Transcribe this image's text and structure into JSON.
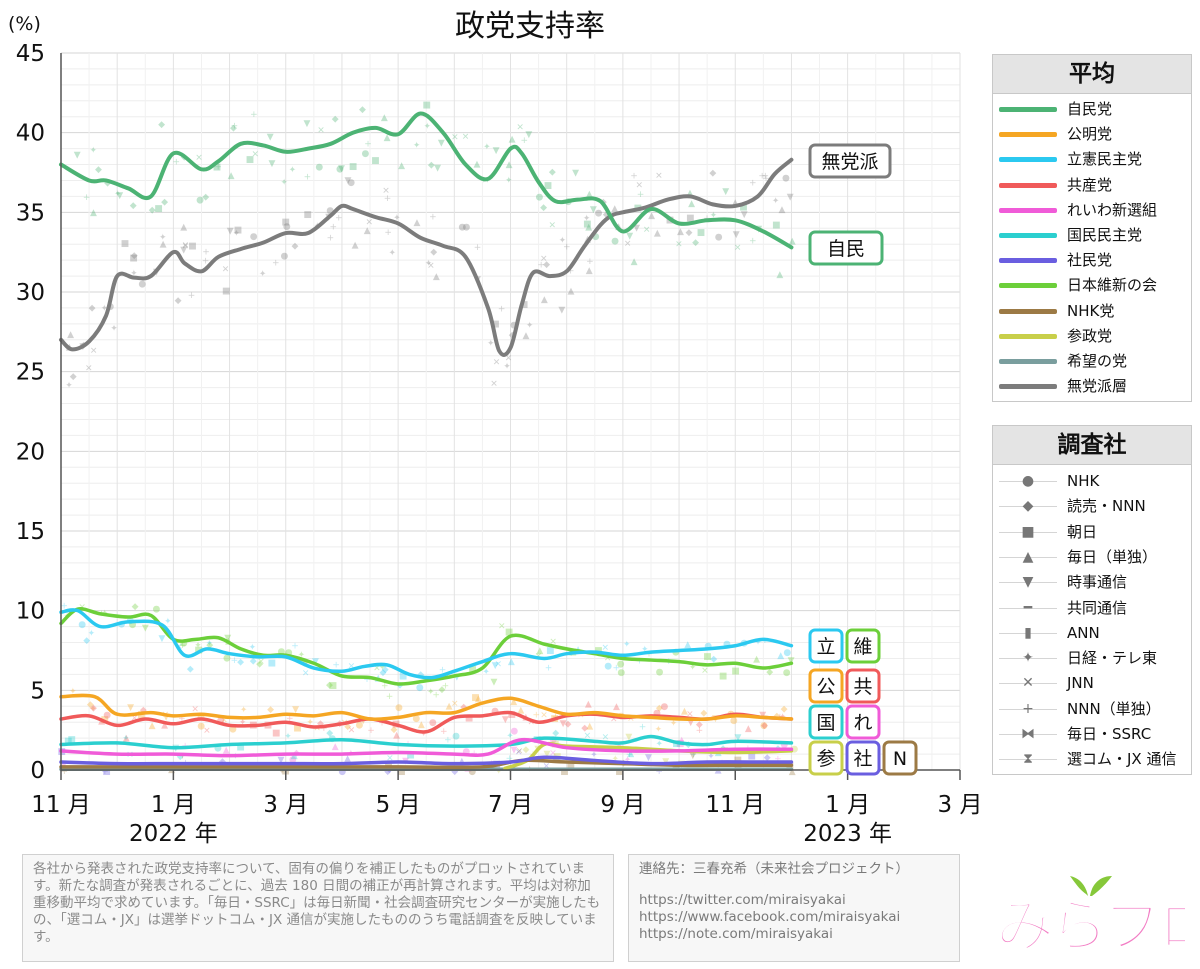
{
  "chart_data": {
    "type": "line",
    "title": "政党支持率",
    "ylabel": "(%)",
    "ylim": [
      0,
      45
    ],
    "yticks": [
      0,
      5,
      10,
      15,
      20,
      25,
      30,
      35,
      40,
      45
    ],
    "xlim": [
      0,
      16
    ],
    "x_ticks": [
      {
        "x": 0,
        "label": "11 月"
      },
      {
        "x": 2,
        "label": "1 月"
      },
      {
        "x": 4,
        "label": "3 月"
      },
      {
        "x": 6,
        "label": "5 月"
      },
      {
        "x": 8,
        "label": "7 月"
      },
      {
        "x": 10,
        "label": "9 月"
      },
      {
        "x": 12,
        "label": "11 月"
      },
      {
        "x": 14,
        "label": "1 月"
      },
      {
        "x": 16,
        "label": "3 月"
      }
    ],
    "year_labels": [
      {
        "x": 2,
        "label": "2022 年"
      },
      {
        "x": 14,
        "label": "2023 年"
      }
    ],
    "series": [
      {
        "name": "自民党",
        "color": "#4cb374",
        "x": [
          0,
          0.5,
          0.8,
          1.2,
          1.6,
          2.0,
          2.5,
          2.8,
          3.2,
          3.6,
          4.0,
          4.4,
          4.8,
          5.2,
          5.6,
          6.0,
          6.4,
          6.8,
          7.2,
          7.6,
          8.0,
          8.2,
          8.5,
          8.8,
          9.2,
          9.6,
          10.0,
          10.5,
          11.0,
          11.5,
          12.0,
          12.5,
          13.0
        ],
        "values": [
          38,
          37,
          37,
          36.5,
          36,
          38.7,
          37.7,
          38.2,
          39.3,
          39.2,
          38.8,
          39.0,
          39.3,
          40.0,
          40.3,
          39.9,
          41.2,
          40.0,
          38.0,
          37.1,
          39.0,
          38.7,
          36.9,
          35.7,
          35.8,
          35.7,
          33.8,
          35.2,
          34.3,
          34.5,
          34.5,
          33.8,
          32.8
        ]
      },
      {
        "name": "公明党",
        "color": "#f5a623",
        "x": [
          0,
          0.6,
          1.0,
          1.6,
          2.0,
          2.5,
          3.0,
          3.5,
          4.0,
          4.5,
          5.0,
          5.5,
          6.0,
          6.5,
          7.0,
          7.5,
          8.0,
          8.5,
          9.0,
          9.5,
          10.0,
          10.5,
          11.0,
          11.5,
          12.0,
          12.5,
          13.0
        ],
        "values": [
          4.6,
          4.6,
          3.5,
          3.6,
          3.4,
          3.5,
          3.3,
          3.3,
          3.5,
          3.4,
          3.6,
          3.2,
          3.3,
          3.6,
          3.6,
          4.2,
          4.5,
          4.0,
          3.5,
          3.6,
          3.4,
          3.3,
          3.2,
          3.2,
          3.4,
          3.3,
          3.2
        ]
      },
      {
        "name": "立憲民主党",
        "color": "#2bc9f0",
        "x": [
          0,
          0.3,
          0.7,
          1.2,
          1.8,
          2.2,
          2.6,
          3.0,
          3.5,
          4.0,
          4.5,
          5.0,
          5.4,
          5.8,
          6.2,
          6.6,
          7.0,
          7.5,
          8.0,
          8.6,
          9.0,
          9.5,
          10.0,
          10.5,
          11.0,
          11.5,
          12.0,
          12.5,
          13.0
        ],
        "values": [
          9.9,
          10.0,
          9.0,
          9.3,
          9.1,
          7.2,
          7.6,
          7.3,
          7.1,
          7.1,
          6.4,
          6.2,
          6.5,
          6.6,
          6.0,
          5.8,
          6.2,
          6.8,
          7.3,
          7.0,
          7.3,
          7.4,
          7.2,
          7.4,
          7.5,
          7.6,
          7.8,
          8.2,
          7.8
        ]
      },
      {
        "name": "共産党",
        "color": "#f05a5a",
        "x": [
          0,
          0.5,
          1.0,
          1.5,
          2.0,
          2.5,
          3.0,
          3.5,
          4.0,
          4.5,
          5.0,
          5.5,
          6.0,
          6.5,
          7.0,
          7.5,
          8.0,
          8.5,
          9.0,
          9.5,
          10.0,
          10.5,
          11.0,
          11.5,
          12.0,
          12.5,
          13.0
        ],
        "values": [
          3.2,
          3.4,
          2.8,
          3.2,
          2.9,
          3.2,
          2.8,
          2.8,
          3.0,
          2.7,
          2.9,
          3.2,
          2.8,
          2.4,
          3.3,
          3.4,
          3.6,
          3.0,
          3.4,
          3.5,
          3.3,
          3.4,
          3.3,
          3.2,
          3.5,
          3.3,
          3.2
        ]
      },
      {
        "name": "れいわ新選組",
        "color": "#f05bd8",
        "x": [
          0,
          1,
          2,
          3,
          4,
          5,
          6,
          7,
          7.6,
          8.2,
          9,
          10,
          11,
          12,
          13
        ],
        "values": [
          1.2,
          1.0,
          1.0,
          0.9,
          1.0,
          1.0,
          1.1,
          1.0,
          1.0,
          1.9,
          1.4,
          1.2,
          1.2,
          1.3,
          1.3
        ]
      },
      {
        "name": "国民民主党",
        "color": "#2bcfcf",
        "x": [
          0,
          1,
          2,
          3,
          4,
          5,
          6,
          7,
          8,
          8.6,
          9.5,
          10,
          10.5,
          11,
          11.5,
          12,
          13
        ],
        "values": [
          1.6,
          1.7,
          1.4,
          1.6,
          1.7,
          1.9,
          1.6,
          1.5,
          1.6,
          2.0,
          1.8,
          1.7,
          2.1,
          1.7,
          1.6,
          1.8,
          1.7
        ]
      },
      {
        "name": "社民党",
        "color": "#6a5ee0",
        "x": [
          0,
          1,
          2,
          3,
          4,
          5,
          6,
          7,
          8,
          8.6,
          9.5,
          10.5,
          11.5,
          12.5,
          13
        ],
        "values": [
          0.5,
          0.4,
          0.4,
          0.4,
          0.4,
          0.4,
          0.5,
          0.4,
          0.5,
          0.8,
          0.6,
          0.4,
          0.5,
          0.5,
          0.5
        ]
      },
      {
        "name": "日本維新の会",
        "color": "#6ccf3a",
        "x": [
          0,
          0.3,
          0.7,
          1.2,
          1.6,
          2.0,
          2.4,
          2.8,
          3.2,
          3.6,
          4.0,
          4.5,
          5.0,
          5.5,
          6.0,
          6.5,
          7.0,
          7.5,
          8.0,
          8.6,
          9.0,
          9.5,
          10.0,
          10.5,
          11.0,
          11.5,
          12.0,
          12.5,
          13.0
        ],
        "values": [
          9.2,
          10.1,
          9.8,
          9.6,
          9.7,
          8.2,
          8.2,
          8.3,
          7.6,
          7.2,
          7.2,
          6.7,
          5.9,
          5.8,
          5.4,
          5.6,
          5.9,
          6.4,
          8.4,
          7.9,
          7.6,
          7.3,
          7.0,
          6.9,
          6.8,
          6.6,
          6.7,
          6.4,
          6.7
        ]
      },
      {
        "name": "NHK党",
        "color": "#9c7a45",
        "x": [
          0,
          2,
          4,
          6,
          7.5,
          8.2,
          9,
          10,
          11,
          12,
          13
        ],
        "values": [
          0.2,
          0.2,
          0.2,
          0.2,
          0.2,
          0.6,
          0.5,
          0.4,
          0.3,
          0.3,
          0.3
        ]
      },
      {
        "name": "参政党",
        "color": "#c8cf4a",
        "x": [
          7.9,
          8.3,
          8.6,
          9.0,
          10.0,
          11.0,
          12.0,
          13.0
        ],
        "values": [
          0.1,
          0.6,
          1.6,
          1.5,
          1.4,
          1.2,
          1.1,
          1.2
        ]
      },
      {
        "name": "希望の党",
        "color": "#7a9e9e",
        "x": [
          0,
          3,
          6,
          9,
          13
        ],
        "values": [
          0.05,
          0.05,
          0.05,
          0.05,
          0.05
        ]
      },
      {
        "name": "無党派層",
        "color": "#7c7c7c",
        "x": [
          0,
          0.2,
          0.5,
          0.8,
          1.0,
          1.3,
          1.6,
          2.0,
          2.2,
          2.5,
          2.8,
          3.2,
          3.6,
          4.0,
          4.4,
          4.8,
          5.0,
          5.2,
          5.6,
          6.0,
          6.4,
          6.8,
          7.2,
          7.6,
          7.8,
          8.0,
          8.2,
          8.4,
          8.7,
          9.0,
          9.3,
          9.6,
          9.8,
          10.0,
          10.4,
          10.8,
          11.2,
          11.6,
          12.0,
          12.4,
          12.7,
          13.0
        ],
        "values": [
          27.0,
          26.4,
          26.9,
          28.5,
          31.0,
          30.9,
          31.0,
          32.5,
          31.8,
          31.3,
          32.2,
          32.7,
          33.1,
          33.7,
          33.7,
          34.8,
          35.4,
          35.2,
          34.7,
          34.3,
          33.4,
          32.9,
          32.2,
          29.0,
          26.3,
          26.5,
          29.2,
          31.2,
          31.0,
          31.3,
          32.8,
          34.2,
          34.8,
          35.0,
          35.3,
          35.8,
          36.0,
          35.5,
          35.4,
          36.0,
          37.4,
          38.3
        ]
      }
    ],
    "end_labels": [
      {
        "label": "無党派",
        "color": "#7c7c7c"
      },
      {
        "label": "自民",
        "color": "#4cb374"
      },
      {
        "label": "立",
        "color": "#2bc9f0"
      },
      {
        "label": "維",
        "color": "#6ccf3a"
      },
      {
        "label": "公",
        "color": "#f5a623"
      },
      {
        "label": "共",
        "color": "#f05a5a"
      },
      {
        "label": "国",
        "color": "#2bcfcf"
      },
      {
        "label": "れ",
        "color": "#f05bd8"
      },
      {
        "label": "参",
        "color": "#c8cf4a"
      },
      {
        "label": "社",
        "color": "#6a5ee0"
      },
      {
        "label": "N",
        "color": "#9c7a45"
      }
    ]
  },
  "legend_avg": {
    "title": "平均",
    "items": [
      {
        "label": "自民党",
        "color": "#4cb374"
      },
      {
        "label": "公明党",
        "color": "#f5a623"
      },
      {
        "label": "立憲民主党",
        "color": "#2bc9f0"
      },
      {
        "label": "共産党",
        "color": "#f05a5a"
      },
      {
        "label": "れいわ新選組",
        "color": "#f05bd8"
      },
      {
        "label": "国民民主党",
        "color": "#2bcfcf"
      },
      {
        "label": "社民党",
        "color": "#6a5ee0"
      },
      {
        "label": "日本維新の会",
        "color": "#6ccf3a"
      },
      {
        "label": "NHK党",
        "color": "#9c7a45"
      },
      {
        "label": "参政党",
        "color": "#c8cf4a"
      },
      {
        "label": "希望の党",
        "color": "#7a9e9e"
      },
      {
        "label": "無党派層",
        "color": "#7c7c7c"
      }
    ]
  },
  "legend_pollsters": {
    "title": "調査社",
    "items": [
      {
        "label": "NHK",
        "icon": "●"
      },
      {
        "label": "読売・NNN",
        "icon": "◆"
      },
      {
        "label": "朝日",
        "icon": "■"
      },
      {
        "label": "毎日（単独）",
        "icon": "▲"
      },
      {
        "label": "時事通信",
        "icon": "▼"
      },
      {
        "label": "共同通信",
        "icon": "━"
      },
      {
        "label": "ANN",
        "icon": "▮"
      },
      {
        "label": "日経・テレ東",
        "icon": "✦"
      },
      {
        "label": "JNN",
        "icon": "✕"
      },
      {
        "label": "NNN（単独）",
        "icon": "+"
      },
      {
        "label": "毎日・SSRC",
        "icon": "⧓"
      },
      {
        "label": "選コム・JX 通信",
        "icon": "⧗"
      }
    ]
  },
  "note": "各社から発表された政党支持率について、固有の偏りを補正したものがプロットされています。新たな調査が発表されるごとに、過去 180 日間の補正が再計算されます。平均は対称加重移動平均で求めています。「毎日・SSRC」は毎日新聞・社会調査研究センターが実施したもの、「選コム・JX」は選挙ドットコム・JX 通信が実施したもののうち電話調査を反映しています。",
  "contact": {
    "label": "連絡先：三春充希（未来社会プロジェクト）",
    "links": [
      "https://twitter.com/miraisyakai",
      "https://www.facebook.com/miraisyakai",
      "https://note.com/miraisyakai"
    ]
  },
  "logo_text": "みらプロ"
}
